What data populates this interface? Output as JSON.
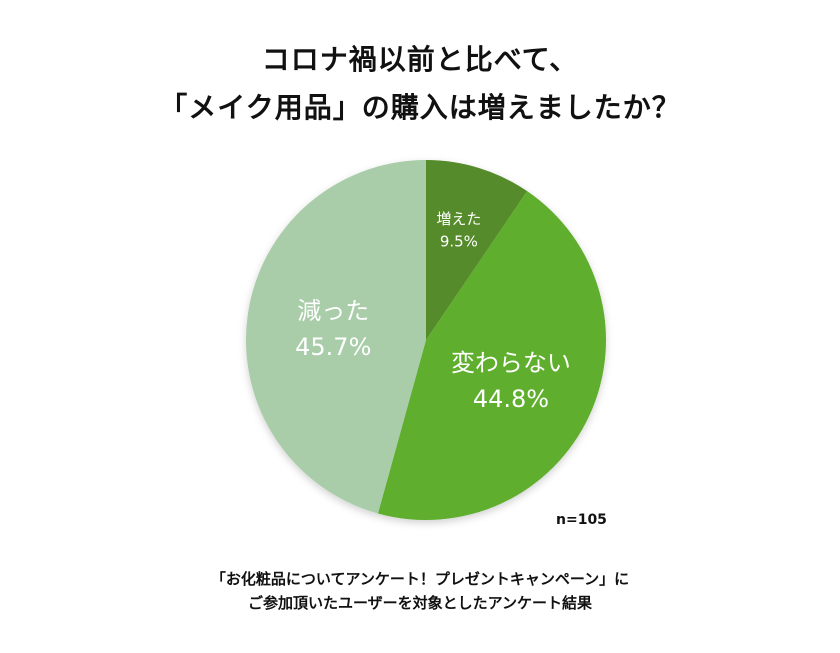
{
  "title_lines": [
    "コロナ禍以前と比べて、",
    "「メイク用品」の購入は増えましたか？"
  ],
  "chart_data": {
    "type": "pie",
    "start": "top",
    "direction": "clockwise",
    "slices": [
      {
        "label": "増えた",
        "value": 9.5,
        "value_label": "9.5%",
        "color": "#548b2b"
      },
      {
        "label": "変わらない",
        "value": 44.8,
        "value_label": "44.8%",
        "color": "#5fae2e"
      },
      {
        "label": "減った",
        "value": 45.7,
        "value_label": "45.7%",
        "color": "#a9cca9"
      }
    ],
    "annotation": "n=105"
  },
  "footnote_lines": [
    "「お化粧品についてアンケート！プレゼントキャンペーン」に",
    "ご参加頂いたユーザーを対象としたアンケート結果"
  ]
}
